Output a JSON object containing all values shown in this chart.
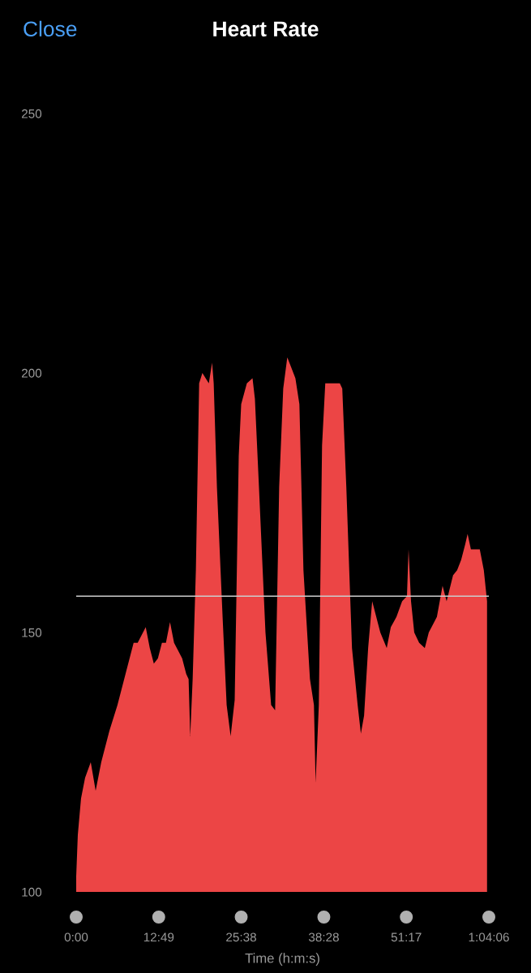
{
  "chart_data": {
    "type": "area",
    "title": "Heart Rate",
    "xlabel": "Time (h:m:s)",
    "annotations": [
      "Close"
    ],
    "x": [
      0,
      0.25,
      0.75,
      1.38,
      2.26,
      3.02,
      3.89,
      5.15,
      6.41,
      7.66,
      8.29,
      8.92,
      9.55,
      10.8,
      11.43,
      12.06,
      12.69,
      13.32,
      13.94,
      14.57,
      15.2,
      16.46,
      17.09,
      17.46,
      17.71,
      18.09,
      18.59,
      19.1,
      19.6,
      20.6,
      21.11,
      21.36,
      21.86,
      22.74,
      23.37,
      23.99,
      24.62,
      25.25,
      25.63,
      26.51,
      27.39,
      27.76,
      28.39,
      29.4,
      30.28,
      30.9,
      31.53,
      32.16,
      32.79,
      33.42,
      34.05,
      34.67,
      35.3,
      36.31,
      36.93,
      37.19,
      37.69,
      38.19,
      38.69,
      39.7,
      40.95,
      41.33,
      41.96,
      42.84,
      43.72,
      44.22,
      44.72,
      45.35,
      45.98,
      46.61,
      47.24,
      48.24,
      48.87,
      49.75,
      50.63,
      51.38,
      51.63,
      52.01,
      52.51,
      53.27,
      54.15,
      54.77,
      56.03,
      56.91,
      57.54,
      58.54,
      59.17,
      59.8,
      60.43,
      60.8,
      61.31,
      62.06,
      62.69,
      63.32,
      63.82
    ],
    "series": [
      {
        "color": "#ec4545",
        "values": [
          103,
          111,
          118,
          122,
          125,
          119.5,
          125,
          131,
          136,
          142,
          145,
          148,
          148,
          151,
          147,
          144,
          145,
          148,
          148,
          152,
          148,
          145,
          142,
          141,
          130,
          141,
          162,
          198,
          200,
          198,
          202,
          198,
          178,
          153,
          136,
          130,
          137,
          184,
          194,
          198,
          199,
          195,
          178,
          150,
          136,
          135,
          178,
          197,
          203,
          201,
          199,
          194,
          162,
          141,
          136,
          121,
          136,
          186,
          198,
          198,
          198,
          197,
          178,
          147,
          136,
          130.5,
          134,
          147,
          156,
          153,
          150,
          147,
          151,
          153,
          156,
          157,
          166,
          156,
          150,
          148,
          147,
          150,
          153,
          159,
          156,
          161,
          162,
          164,
          167,
          169,
          166,
          166,
          166,
          162,
          156
        ]
      }
    ],
    "xlim": [
      0,
      64.1
    ],
    "xticks": [
      {
        "value": 0,
        "label": "0:00"
      },
      {
        "value": 12.82,
        "label": "12:49"
      },
      {
        "value": 25.63,
        "label": "25:38"
      },
      {
        "value": 38.47,
        "label": "38:28"
      },
      {
        "value": 51.28,
        "label": "51:17"
      },
      {
        "value": 64.1,
        "label": "1:04:06"
      }
    ],
    "ylim": [
      100,
      250
    ],
    "yticks": [
      100,
      150,
      200,
      250
    ],
    "ref_lines": [
      {
        "axis": "y",
        "value": 157,
        "color": "#cccccc"
      }
    ],
    "grid": false,
    "legend": false
  }
}
